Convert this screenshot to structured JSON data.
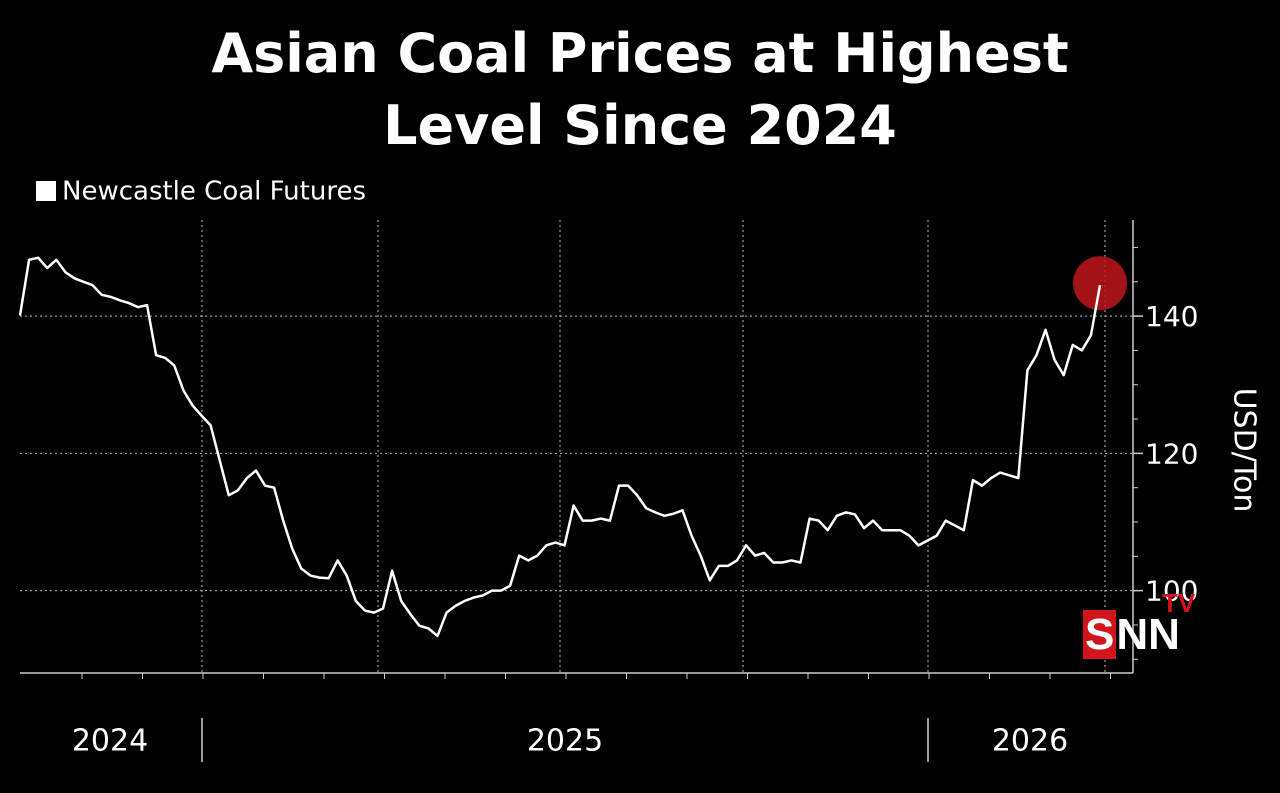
{
  "chart_data": {
    "type": "line",
    "title": "Asian Coal Prices at Highest Level Since 2024",
    "y_axis_label": "USD/Ton",
    "x_labels": [
      "2024",
      "2025",
      "2026"
    ],
    "series": [
      {
        "name": "Newcastle Coal Futures",
        "color": "#ffffff",
        "values": [
          140.1,
          148.2,
          148.5,
          147.0,
          148.2,
          146.4,
          145.5,
          145.0,
          144.5,
          143.1,
          142.8,
          142.3,
          141.9,
          141.3,
          141.6,
          134.3,
          133.9,
          132.8,
          129.2,
          127.0,
          125.5,
          124.1,
          119.0,
          113.9,
          114.6,
          116.4,
          117.5,
          115.3,
          115.0,
          110.2,
          106.1,
          103.2,
          102.2,
          101.9,
          101.8,
          104.4,
          102.2,
          98.5,
          97.1,
          96.8,
          97.4,
          102.9,
          98.5,
          96.6,
          94.9,
          94.5,
          93.4,
          96.8,
          97.8,
          98.5,
          99.0,
          99.3,
          100.0,
          100.0,
          100.7,
          105.1,
          104.4,
          105.1,
          106.6,
          107.0,
          106.6,
          112.4,
          110.2,
          110.2,
          110.5,
          110.2,
          115.3,
          115.3,
          113.9,
          112.0,
          111.4,
          110.9,
          111.2,
          111.7,
          108.0,
          105.1,
          101.5,
          103.6,
          103.6,
          104.4,
          106.6,
          105.1,
          105.5,
          104.1,
          104.1,
          104.4,
          104.1,
          110.5,
          110.2,
          108.8,
          110.9,
          111.4,
          111.1,
          109.1,
          110.2,
          108.8,
          108.8,
          108.8,
          108.0,
          106.6,
          107.3,
          108.0,
          110.2,
          109.5,
          108.8,
          116.1,
          115.3,
          116.4,
          117.2,
          116.8,
          116.4,
          132.1,
          134.3,
          138.0,
          133.6,
          131.4,
          135.8,
          135.0,
          137.2,
          144.5
        ]
      }
    ],
    "ylim": [
      88,
      154
    ],
    "yticks": [
      100,
      120,
      140
    ],
    "grid": true,
    "highlight_color": "#c0151a",
    "watermark": {
      "brand": "SNN",
      "sub": "TV"
    }
  }
}
